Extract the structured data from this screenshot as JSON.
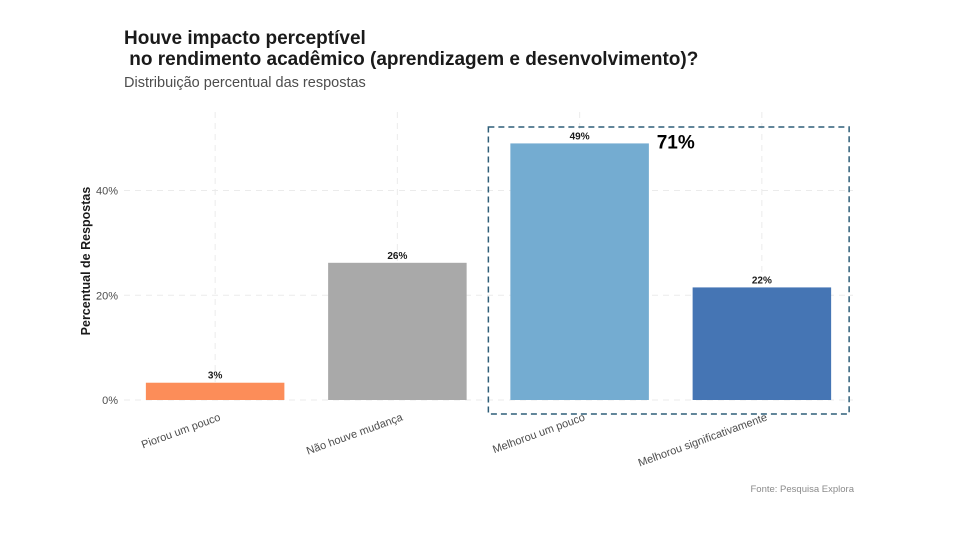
{
  "chart_data": {
    "type": "bar",
    "title_line1": "Houve impacto perceptível",
    "title_line2": " no rendimento acadêmico (aprendizagem e desenvolvimento)?",
    "subtitle": "Distribuição percentual das respostas",
    "ylabel": "Percentual de Respostas",
    "xlabel": "",
    "caption": "Fonte: Pesquisa Explora",
    "categories": [
      "Piorou um pouco",
      "Não houve mudança",
      "Melhorou um pouco",
      "Melhorou significativamente"
    ],
    "values": [
      3.3,
      26.2,
      49,
      21.5
    ],
    "value_labels": [
      "3%",
      "26%",
      "49%",
      "22%"
    ],
    "colors": [
      "#FC8D59",
      "#A9A9A9",
      "#74ACD1",
      "#4575B4"
    ],
    "ylim": [
      0,
      55
    ],
    "yticks": [
      0,
      20,
      40
    ],
    "ytick_labels": [
      "0%",
      "20%",
      "40%"
    ],
    "highlight": {
      "categories": [
        "Melhorou um pouco",
        "Melhorou significativamente"
      ],
      "label": "71%",
      "box_color": "#2E5E78"
    },
    "grid": true
  }
}
